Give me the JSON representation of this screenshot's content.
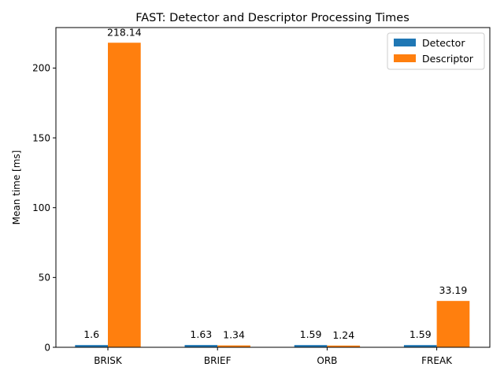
{
  "chart_data": {
    "type": "bar",
    "title": "FAST: Detector and Descriptor Processing Times",
    "xlabel": "",
    "ylabel": "Mean time [ms]",
    "categories": [
      "BRISK",
      "BRIEF",
      "ORB",
      "FREAK"
    ],
    "series": [
      {
        "name": "Detector",
        "color": "#1f77b4",
        "values": [
          1.6,
          1.63,
          1.59,
          1.59
        ],
        "labels": [
          "1.6",
          "1.63",
          "1.59",
          "1.59"
        ]
      },
      {
        "name": "Descriptor",
        "color": "#ff7f0e",
        "values": [
          218.14,
          1.34,
          1.24,
          33.19
        ],
        "labels": [
          "218.14",
          "1.34",
          "1.24",
          "33.19"
        ]
      }
    ],
    "ylim": [
      0,
      229
    ],
    "yticks": [
      0,
      50,
      100,
      150,
      200
    ],
    "legend": "top-right",
    "grid": false
  }
}
